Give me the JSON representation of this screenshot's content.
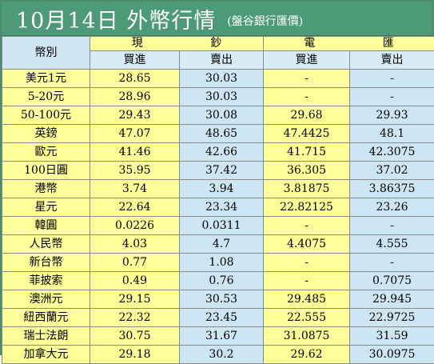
{
  "title": "10月14日 外幣行情",
  "subtitle": "(盤谷銀行匯價)",
  "header": {
    "currency_label": "幣別",
    "cash_label": "現 鈔",
    "telegraphic_label": "電 匯",
    "buy_label": "買進",
    "sell_label": "賣出"
  },
  "rows": [
    {
      "name": "美元1元",
      "cash_buy": "28.65",
      "cash_sell": "30.03",
      "tt_buy": "-",
      "tt_sell": "-"
    },
    {
      "name": "5-20元",
      "cash_buy": "28.96",
      "cash_sell": "30.03",
      "tt_buy": "-",
      "tt_sell": "-"
    },
    {
      "name": "50-100元",
      "cash_buy": "29.43",
      "cash_sell": "30.08",
      "tt_buy": "29.68",
      "tt_sell": "29.93"
    },
    {
      "name": "英鎊",
      "cash_buy": "47.07",
      "cash_sell": "48.65",
      "tt_buy": "47.4425",
      "tt_sell": "48.1"
    },
    {
      "name": "歐元",
      "cash_buy": "41.46",
      "cash_sell": "42.66",
      "tt_buy": "41.715",
      "tt_sell": "42.3075"
    },
    {
      "name": "100日圓",
      "cash_buy": "35.95",
      "cash_sell": "37.42",
      "tt_buy": "36.305",
      "tt_sell": "37.02"
    },
    {
      "name": "港幣",
      "cash_buy": "3.74",
      "cash_sell": "3.94",
      "tt_buy": "3.81875",
      "tt_sell": "3.86375"
    },
    {
      "name": "星元",
      "cash_buy": "22.64",
      "cash_sell": "23.34",
      "tt_buy": "22.82125",
      "tt_sell": "23.26"
    },
    {
      "name": "韓圓",
      "cash_buy": "0.0226",
      "cash_sell": "0.0311",
      "tt_buy": "-",
      "tt_sell": "-"
    },
    {
      "name": "人民幣",
      "cash_buy": "4.03",
      "cash_sell": "4.7",
      "tt_buy": "4.4075",
      "tt_sell": "4.555"
    },
    {
      "name": "新台幣",
      "cash_buy": "0.77",
      "cash_sell": "1.08",
      "tt_buy": "-",
      "tt_sell": "-"
    },
    {
      "name": "菲披索",
      "cash_buy": "0.49",
      "cash_sell": "0.76",
      "tt_buy": "-",
      "tt_sell": "0.7075"
    },
    {
      "name": "澳洲元",
      "cash_buy": "29.15",
      "cash_sell": "30.53",
      "tt_buy": "29.485",
      "tt_sell": "29.945"
    },
    {
      "name": "紐西蘭元",
      "cash_buy": "22.32",
      "cash_sell": "23.45",
      "tt_buy": "22.555",
      "tt_sell": "22.9725"
    },
    {
      "name": "瑞士法朗",
      "cash_buy": "30.75",
      "cash_sell": "31.67",
      "tt_buy": "31.0875",
      "tt_sell": "31.59"
    },
    {
      "name": "加拿大元",
      "cash_buy": "29.18",
      "cash_sell": "30.2",
      "tt_buy": "29.62",
      "tt_sell": "30.0975"
    }
  ],
  "colors": {
    "title_bg": "#4d9a78",
    "yellow": "#ffff99",
    "blue": "#cde6f3"
  }
}
